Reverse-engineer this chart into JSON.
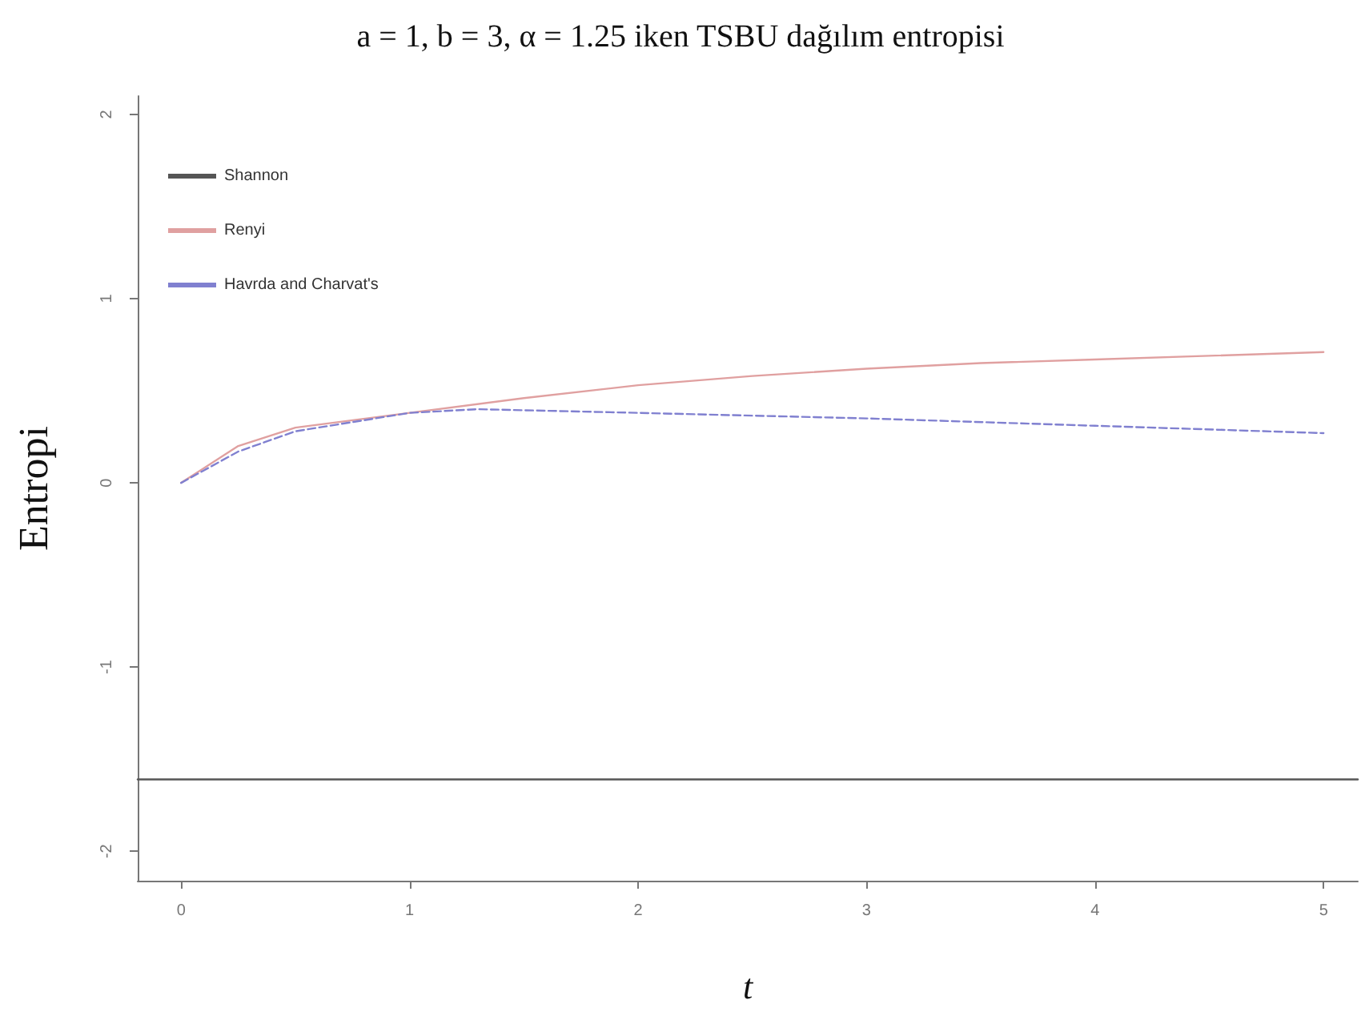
{
  "chart_data": {
    "type": "line",
    "title": "a = 1, b = 3, α = 1.25 iken TSBU dağılım entropisi",
    "xlabel": "t",
    "ylabel": "Entropi",
    "xlim": [
      -0.19,
      5.15
    ],
    "xticks": [
      0,
      1,
      2,
      3,
      4,
      5
    ],
    "ylim": [
      -2.16,
      2.1
    ],
    "yticks": [
      -2,
      -1,
      0,
      1,
      2
    ],
    "grid": false,
    "legend": "top left",
    "series": [
      {
        "name": "Shannon",
        "color": "#555555",
        "line_style": "solid",
        "x": [
          -0.19,
          5.15
        ],
        "values": [
          -1.61,
          -1.61
        ]
      },
      {
        "name": "Renyi",
        "color": "#e0a0a0",
        "line_style": "solid",
        "x": [
          0,
          0.25,
          0.5,
          1,
          1.5,
          2,
          2.5,
          3,
          3.5,
          4,
          4.5,
          5
        ],
        "values": [
          0,
          0.2,
          0.3,
          0.38,
          0.46,
          0.53,
          0.58,
          0.62,
          0.65,
          0.67,
          0.69,
          0.71
        ]
      },
      {
        "name": "Havrda and Charvat's",
        "color": "#8080d0",
        "line_style": "dashed",
        "x": [
          0,
          0.25,
          0.5,
          1,
          1.3,
          2,
          3,
          4,
          5
        ],
        "values": [
          0,
          0.17,
          0.28,
          0.38,
          0.4,
          0.38,
          0.35,
          0.31,
          0.27
        ]
      }
    ]
  }
}
